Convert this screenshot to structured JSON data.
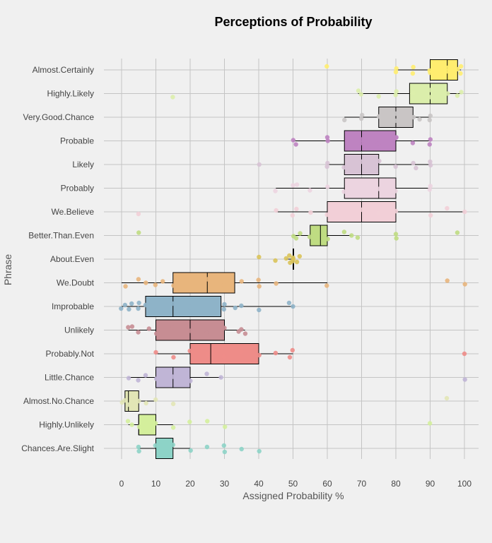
{
  "chart_data": {
    "type": "box",
    "title": "Perceptions of Probability",
    "xlabel": "Assigned Probability %",
    "ylabel": "Phrase",
    "xlim": [
      -1,
      102
    ],
    "x_ticks": [
      0,
      10,
      20,
      30,
      40,
      50,
      60,
      70,
      80,
      90,
      100
    ],
    "grid": true,
    "legend": "none",
    "categories": [
      "Almost.Certainly",
      "Highly.Likely",
      "Very.Good.Chance",
      "Probable",
      "Likely",
      "Probably",
      "We.Believe",
      "Better.Than.Even",
      "About.Even",
      "We.Doubt",
      "Improbable",
      "Unlikely",
      "Probably.Not",
      "Little.Chance",
      "Almost.No.Chance",
      "Highly.Unlikely",
      "Chances.Are.Slight"
    ],
    "series": [
      {
        "category": "Almost.Certainly",
        "color": "#ffed6f",
        "whisker_low": 80,
        "q1": 90,
        "median": 95,
        "q3": 98,
        "whisker_high": 99,
        "points": [
          60,
          80,
          80,
          85,
          85,
          90,
          90,
          95,
          95,
          98,
          99,
          99
        ]
      },
      {
        "category": "Highly.Likely",
        "color": "#dbeeab",
        "whisker_low": 69,
        "q1": 84,
        "median": 90,
        "q3": 95,
        "whisker_high": 99,
        "points": [
          15,
          69,
          70,
          75,
          80,
          80,
          85,
          90,
          90,
          95,
          98,
          99
        ]
      },
      {
        "category": "Very.Good.Chance",
        "color": "#c9c5c5",
        "whisker_low": 65,
        "q1": 75,
        "median": 80,
        "q3": 85,
        "whisker_high": 90,
        "points": [
          65,
          70,
          70,
          75,
          80,
          80,
          85,
          87,
          90,
          90
        ]
      },
      {
        "category": "Probable",
        "color": "#be83c1",
        "whisker_low": 50,
        "q1": 65,
        "median": 70,
        "q3": 80,
        "whisker_high": 90,
        "points": [
          50,
          51,
          60,
          60,
          70,
          70,
          75,
          80,
          80,
          85,
          90,
          90
        ]
      },
      {
        "category": "Likely",
        "color": "#d8c3d5",
        "whisker_low": 60,
        "q1": 65,
        "median": 70,
        "q3": 75,
        "whisker_high": 90,
        "points": [
          40,
          60,
          60,
          65,
          70,
          75,
          80,
          85,
          86,
          90,
          90
        ]
      },
      {
        "category": "Probably",
        "color": "#ecd4e0",
        "whisker_low": 45,
        "q1": 65,
        "median": 75,
        "q3": 80,
        "whisker_high": 90,
        "points": [
          45,
          50,
          51,
          55,
          60,
          65,
          70,
          75,
          80,
          90,
          90
        ]
      },
      {
        "category": "We.Believe",
        "color": "#f2cfd7",
        "whisker_low": 45,
        "q1": 60,
        "median": 70,
        "q3": 80,
        "whisker_high": 100,
        "points": [
          5,
          45,
          50,
          51,
          55,
          60,
          70,
          75,
          80,
          90,
          95,
          100
        ]
      },
      {
        "category": "Better.Than.Even",
        "color": "#bfdc82",
        "whisker_low": 50,
        "q1": 55,
        "median": 58,
        "q3": 60,
        "whisker_high": 67,
        "points": [
          5,
          50,
          51,
          52,
          55,
          57,
          60,
          65,
          67,
          69,
          80,
          80,
          98
        ]
      },
      {
        "category": "About.Even",
        "color": "#d9c35a",
        "whisker_low": 48,
        "q1": 50,
        "median": 50,
        "q3": 50,
        "whisker_high": 50,
        "points": [
          40,
          45,
          48,
          49,
          49,
          50,
          50,
          50,
          51,
          52
        ]
      },
      {
        "category": "We.Doubt",
        "color": "#e8b57c",
        "whisker_low": 0,
        "q1": 15,
        "median": 25,
        "q3": 33,
        "whisker_high": 60,
        "points": [
          1,
          5,
          7,
          10,
          12,
          15,
          20,
          25,
          30,
          35,
          40,
          40,
          45,
          60,
          95,
          100
        ]
      },
      {
        "category": "Improbable",
        "color": "#8eb3c8",
        "whisker_low": 0,
        "q1": 7,
        "median": 15,
        "q3": 29,
        "whisker_high": 50,
        "points": [
          0,
          1,
          2,
          3,
          5,
          5,
          7,
          10,
          15,
          20,
          30,
          30,
          33,
          35,
          40,
          49,
          50
        ]
      },
      {
        "category": "Unlikely",
        "color": "#c78d93",
        "whisker_low": 2,
        "q1": 10,
        "median": 20,
        "q3": 30,
        "whisker_high": 36,
        "points": [
          2,
          3,
          5,
          8,
          10,
          15,
          20,
          25,
          30,
          34,
          35,
          36
        ]
      },
      {
        "category": "Probably.Not",
        "color": "#ee8c88",
        "whisker_low": 10,
        "q1": 20,
        "median": 26,
        "q3": 40,
        "whisker_high": 50,
        "points": [
          10,
          15,
          20,
          25,
          30,
          35,
          40,
          45,
          49,
          50,
          100
        ]
      },
      {
        "category": "Little.Chance",
        "color": "#c0b5d6",
        "whisker_low": 2,
        "q1": 10,
        "median": 15,
        "q3": 20,
        "whisker_high": 29,
        "points": [
          2,
          5,
          7,
          10,
          15,
          20,
          25,
          29,
          100
        ]
      },
      {
        "category": "Almost.No.Chance",
        "color": "#e2e6b6",
        "whisker_low": 0,
        "q1": 1,
        "median": 2,
        "q3": 5,
        "whisker_high": 10,
        "points": [
          0,
          1,
          2,
          3,
          5,
          7,
          10,
          15,
          95
        ]
      },
      {
        "category": "Highly.Unlikely",
        "color": "#d4ef9c",
        "whisker_low": 2,
        "q1": 5,
        "median": 5,
        "q3": 10,
        "whisker_high": 15,
        "points": [
          2,
          3,
          5,
          10,
          15,
          20,
          25,
          30,
          90
        ]
      },
      {
        "category": "Chances.Are.Slight",
        "color": "#8dd3c7",
        "whisker_low": 5,
        "q1": 10,
        "median": 10,
        "q3": 15,
        "whisker_high": 20,
        "points": [
          5,
          5,
          10,
          15,
          20,
          25,
          30,
          30,
          35,
          40
        ]
      }
    ]
  }
}
